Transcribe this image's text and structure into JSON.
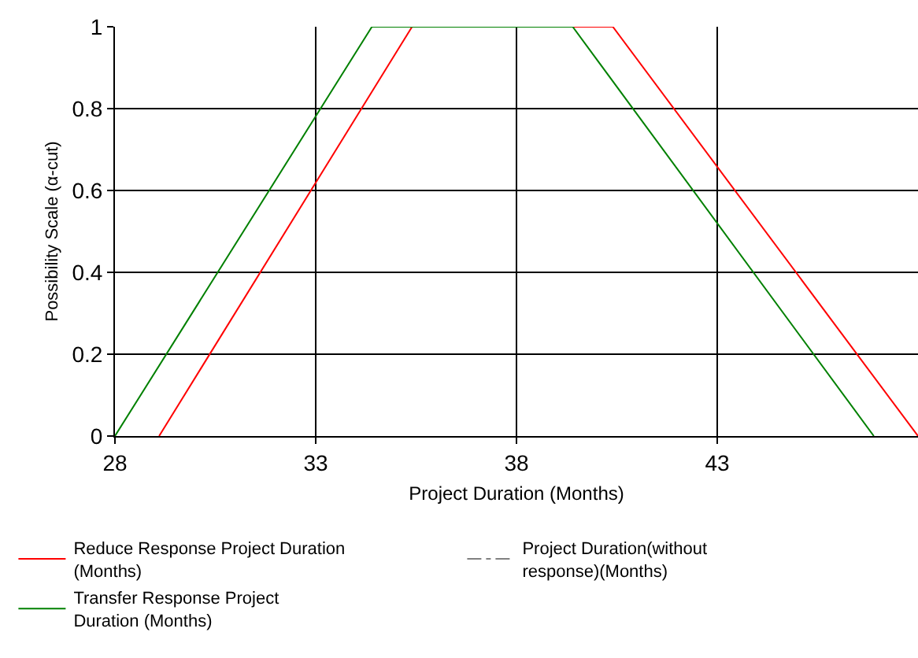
{
  "chart_data": {
    "type": "line",
    "xlabel": "Project Duration (Months)",
    "ylabel": "Possibility Scale (α-cut)",
    "xlim": [
      28,
      48
    ],
    "xticks": [
      28,
      33,
      38,
      43
    ],
    "ylim": [
      0,
      1
    ],
    "yticks": [
      0,
      0.2,
      0.4,
      0.6,
      0.8,
      1
    ],
    "grid": true,
    "legend": "bottom",
    "marker": "none",
    "series": [
      {
        "name": "Reduce Response Project Duration (Months)",
        "color": "#ff0000",
        "x": [
          29.1,
          35.4,
          40.4,
          48
        ],
        "values": [
          0,
          1,
          1,
          0
        ],
        "line_style": "solid"
      },
      {
        "name": "Project Duration(without response)(Months)",
        "color": "#808080",
        "line_style": "dashed"
      },
      {
        "name": "Transfer Response Project Duration (Months)",
        "color": "#008000",
        "x": [
          28,
          34.4,
          39.4,
          46.9
        ],
        "values": [
          0,
          1,
          1,
          0
        ],
        "line_style": "solid"
      }
    ]
  }
}
